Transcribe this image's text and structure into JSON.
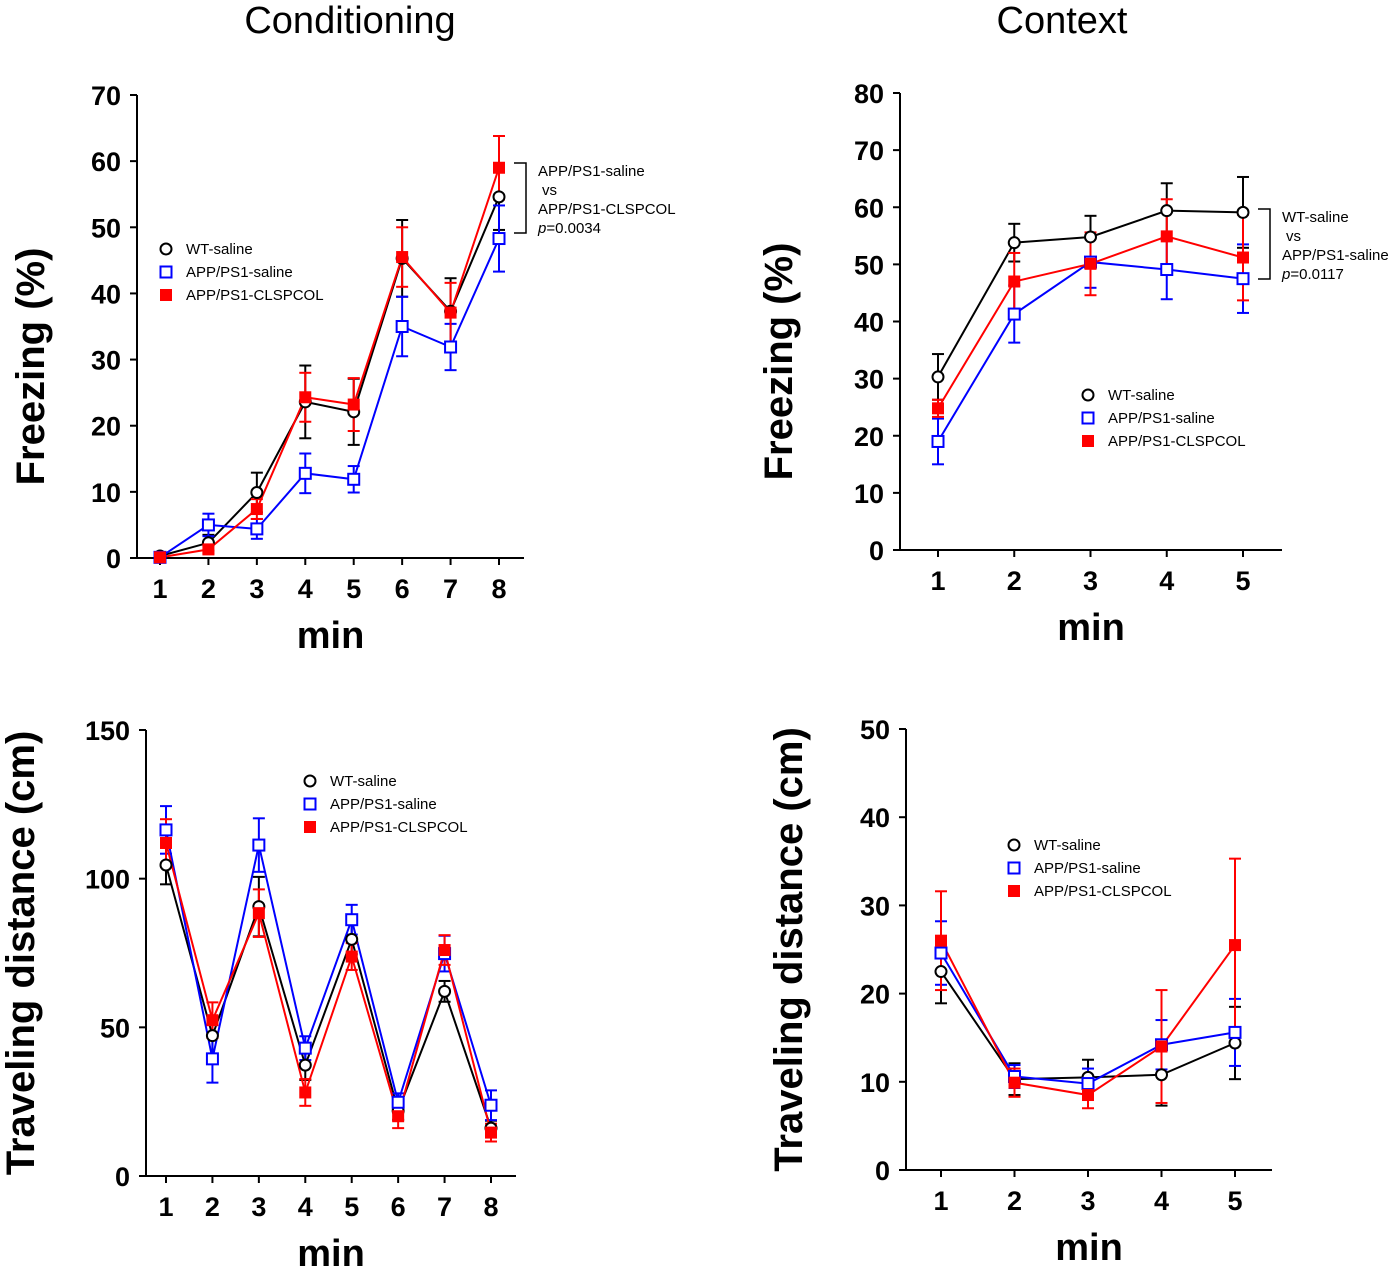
{
  "column_titles": [
    "Conditioning",
    "Context"
  ],
  "series_styles": [
    {
      "name": "WT-saline",
      "color": "#000000",
      "marker": "open-circle"
    },
    {
      "name": "APP/PS1-saline",
      "color": "#0000ff",
      "marker": "open-square"
    },
    {
      "name": "APP/PS1-CLSPCOL",
      "color": "#ff0000",
      "marker": "filled-square"
    }
  ],
  "chart_data": [
    {
      "type": "line",
      "title": "",
      "xlabel": "min",
      "ylabel": "Freezing (%)",
      "x": [
        1,
        2,
        3,
        4,
        5,
        6,
        7,
        8
      ],
      "ylim": [
        0,
        70
      ],
      "yticks": [
        0,
        10,
        20,
        30,
        40,
        50,
        60,
        70
      ],
      "legend": "left",
      "annotation": {
        "line1": "APP/PS1-saline",
        "line2": "vs",
        "line3": "APP/PS1-CLSPCOL",
        "p_label": "p",
        "p_value": "=0.0034"
      },
      "series": [
        {
          "name": "WT-saline",
          "values": [
            0.3,
            2.3,
            9.9,
            23.6,
            22.1,
            45.3,
            37.3,
            54.6
          ],
          "errors": [
            0.3,
            1.2,
            3.0,
            5.5,
            5.0,
            5.8,
            5.0,
            5.0
          ]
        },
        {
          "name": "APP/PS1-saline",
          "values": [
            0.1,
            5.0,
            4.4,
            12.8,
            11.9,
            35.0,
            31.9,
            48.3
          ],
          "errors": [
            0.3,
            1.7,
            1.5,
            3.0,
            2.0,
            4.5,
            3.5,
            5.0
          ]
        },
        {
          "name": "APP/PS1-CLSPCOL",
          "values": [
            0.1,
            1.3,
            7.4,
            24.3,
            23.2,
            45.5,
            37.1,
            59.0
          ],
          "errors": [
            0.2,
            0.6,
            1.5,
            3.7,
            4.0,
            4.5,
            4.5,
            4.8
          ]
        }
      ]
    },
    {
      "type": "line",
      "title": "",
      "xlabel": "min",
      "ylabel": "Freezing (%)",
      "x": [
        1,
        2,
        3,
        4,
        5
      ],
      "ylim": [
        0,
        80
      ],
      "yticks": [
        0,
        10,
        20,
        30,
        40,
        50,
        60,
        70,
        80
      ],
      "legend": "bottom-right",
      "annotation": {
        "line1": "WT-saline",
        "line2": "vs",
        "line3": "APP/PS1-saline",
        "p_label": "p",
        "p_value": "=0.0117"
      },
      "series": [
        {
          "name": "WT-saline",
          "values": [
            30.3,
            53.8,
            54.8,
            59.4,
            59.1
          ],
          "errors": [
            4.0,
            3.3,
            3.7,
            4.8,
            6.2
          ]
        },
        {
          "name": "APP/PS1-saline",
          "values": [
            19.0,
            41.3,
            50.4,
            49.1,
            47.5
          ],
          "errors": [
            4.0,
            5.0,
            4.5,
            5.2,
            6.0
          ]
        },
        {
          "name": "APP/PS1-CLSPCOL",
          "values": [
            24.8,
            47.0,
            50.1,
            54.9,
            51.2
          ],
          "errors": [
            1.5,
            5.0,
            5.5,
            6.5,
            7.5
          ]
        }
      ]
    },
    {
      "type": "line",
      "title": "",
      "xlabel": "min",
      "ylabel": "Traveling distance (cm)",
      "x": [
        1,
        2,
        3,
        4,
        5,
        6,
        7,
        8
      ],
      "ylim": [
        0,
        150
      ],
      "yticks": [
        0,
        50,
        100,
        150
      ],
      "legend": "top-right",
      "series": [
        {
          "name": "WT-saline",
          "values": [
            104.6,
            47.2,
            90.6,
            37.3,
            79.6,
            21.9,
            62.1,
            16.1
          ],
          "errors": [
            6.5,
            6.0,
            10.0,
            5.0,
            5.0,
            3.0,
            3.5,
            2.5
          ]
        },
        {
          "name": "APP/PS1-saline",
          "values": [
            116.4,
            39.4,
            111.3,
            43.0,
            86.2,
            24.8,
            74.8,
            23.8
          ],
          "errors": [
            8.0,
            8.0,
            9.0,
            4.0,
            5.0,
            3.0,
            6.0,
            5.0
          ]
        },
        {
          "name": "APP/PS1-CLSPCOL",
          "values": [
            112.0,
            52.4,
            88.4,
            28.1,
            73.8,
            20.1,
            76.0,
            14.6
          ],
          "errors": [
            8.0,
            6.0,
            8.0,
            4.5,
            4.5,
            4.0,
            5.0,
            3.0
          ]
        }
      ]
    },
    {
      "type": "line",
      "title": "",
      "xlabel": "min",
      "ylabel": "Traveling distance (cm)",
      "x": [
        1,
        2,
        3,
        4,
        5
      ],
      "ylim": [
        0,
        50
      ],
      "yticks": [
        0,
        10,
        20,
        30,
        40,
        50
      ],
      "legend": "top-right",
      "series": [
        {
          "name": "WT-saline",
          "values": [
            22.5,
            10.3,
            10.5,
            10.8,
            14.4
          ],
          "errors": [
            3.6,
            1.8,
            2.0,
            3.5,
            4.1
          ]
        },
        {
          "name": "APP/PS1-saline",
          "values": [
            24.6,
            10.6,
            9.8,
            14.2,
            15.6
          ],
          "errors": [
            3.6,
            1.3,
            1.7,
            2.8,
            3.8
          ]
        },
        {
          "name": "APP/PS1-CLSPCOL",
          "values": [
            26.0,
            9.9,
            8.5,
            14.0,
            25.5
          ],
          "errors": [
            5.6,
            1.6,
            1.5,
            6.4,
            9.8
          ]
        }
      ]
    }
  ]
}
